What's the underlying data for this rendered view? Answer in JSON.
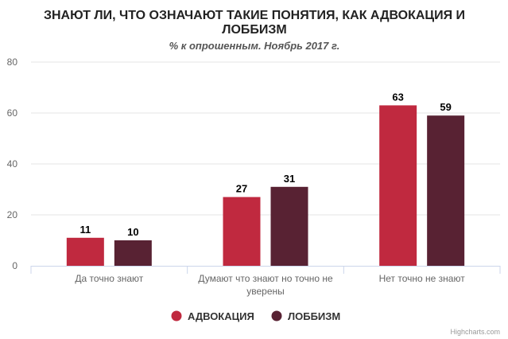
{
  "chart_data": {
    "type": "bar",
    "title": "ЗНАЮТ ЛИ, ЧТО ОЗНАЧАЮТ ТАКИЕ ПОНЯТИЯ, КАК АДВОКАЦИЯ И ЛОББИЗМ",
    "title_lines": [
      "ЗНАЮТ ЛИ, ЧТО ОЗНАЧАЮТ ТАКИЕ ПОНЯТИЯ, КАК АДВОКАЦИЯ И",
      "ЛОББИЗМ"
    ],
    "subtitle": "% к опрошенным. Ноябрь 2017 г.",
    "categories": [
      "Да точно знают",
      "Думают что знают но точно не уверены",
      "Нет точно не знают"
    ],
    "category_lines": [
      [
        "Да точно знают"
      ],
      [
        "Думают что знают но точно не",
        "уверены"
      ],
      [
        "Нет точно не знают"
      ]
    ],
    "series": [
      {
        "name": "АДВОКАЦИЯ",
        "color": "#c0293f",
        "values": [
          11,
          27,
          63
        ]
      },
      {
        "name": "ЛОББИЗМ",
        "color": "#582233",
        "values": [
          10,
          31,
          59
        ]
      }
    ],
    "ylim": [
      0,
      80
    ],
    "yticks": [
      0,
      20,
      40,
      60,
      80
    ],
    "grid": true,
    "legend": "bottom-center",
    "xlabel": "",
    "ylabel": ""
  },
  "credits": "Highcharts.com"
}
